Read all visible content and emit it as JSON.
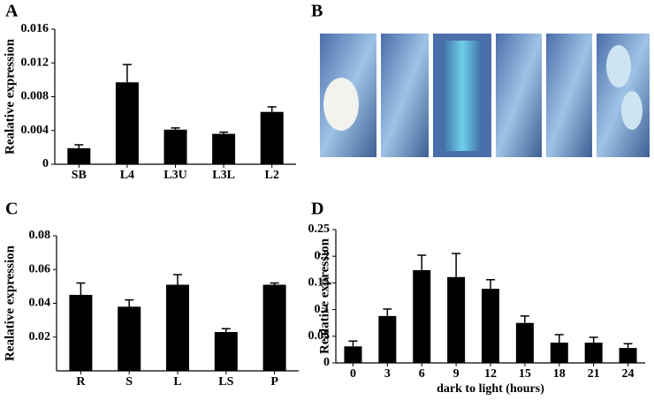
{
  "panel_labels": [
    "A",
    "B",
    "C",
    "D"
  ],
  "chart_data": [
    {
      "type": "bar",
      "ylabel": "Realative expression",
      "categories": [
        "SB",
        "L4",
        "L3U",
        "L3L",
        "L2"
      ],
      "values": [
        0.0019,
        0.0097,
        0.0041,
        0.0036,
        0.0062
      ],
      "errors": [
        0.0004,
        0.0021,
        0.0002,
        0.0002,
        0.0006
      ],
      "color": "#000000",
      "ylim": [
        0,
        0.016
      ],
      "yticks": [
        0,
        0.004,
        0.008,
        0.012,
        0.016
      ]
    },
    {
      "type": "bar",
      "ylabel": "Realative expression",
      "categories": [
        "R",
        "S",
        "L",
        "LS",
        "P"
      ],
      "values": [
        0.045,
        0.038,
        0.051,
        0.023,
        0.051
      ],
      "errors": [
        0.007,
        0.004,
        0.006,
        0.002,
        0.001
      ],
      "color": "#000000",
      "ylim": [
        0,
        0.08
      ],
      "yticks": [
        0.02,
        0.04,
        0.06,
        0.08
      ]
    },
    {
      "type": "bar",
      "ylabel": "Realative expression",
      "xlabel": "dark to light (hours)",
      "categories": [
        "0",
        "3",
        "6",
        "9",
        "12",
        "15",
        "18",
        "21",
        "24"
      ],
      "values": [
        0.031,
        0.088,
        0.174,
        0.161,
        0.139,
        0.075,
        0.038,
        0.038,
        0.028
      ],
      "errors": [
        0.01,
        0.013,
        0.028,
        0.044,
        0.017,
        0.013,
        0.015,
        0.01,
        0.008
      ],
      "color": "#000000",
      "ylim": [
        0,
        0.25
      ],
      "yticks": [
        0,
        0.05,
        0.1,
        0.15,
        0.2,
        0.25
      ]
    }
  ]
}
